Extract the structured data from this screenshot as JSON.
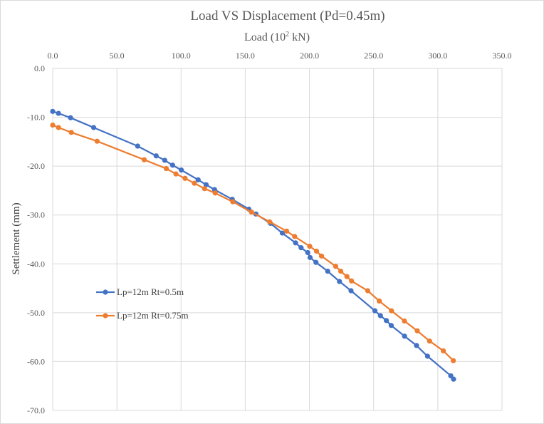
{
  "chart_data": {
    "type": "line",
    "title": "Load VS Displacement  (Pd=0.45m)",
    "xlabel_main": "Load (10",
    "xlabel_sup": "2",
    "xlabel_end": " kN)",
    "ylabel": "Settlement (mm)",
    "xlim": [
      0,
      350
    ],
    "ylim": [
      -70,
      0
    ],
    "x_ticks": [
      0,
      50,
      100,
      150,
      200,
      250,
      300,
      350
    ],
    "x_tick_labels": [
      "0.0",
      "50.0",
      "100.0",
      "150.0",
      "200.0",
      "250.0",
      "300.0",
      "350.0"
    ],
    "y_ticks": [
      0,
      -10,
      -20,
      -30,
      -40,
      -50,
      -60,
      -70
    ],
    "y_tick_labels": [
      "0.0",
      "-10.0",
      "-20.0",
      "-30.0",
      "-40.0",
      "-50.0",
      "-60.0",
      "-70.0"
    ],
    "x_axis_position": "top",
    "grid": true,
    "legend_position": "left-middle",
    "series": [
      {
        "name": "Lp=12m Rt=0.5m",
        "color": "#4472c4",
        "x": [
          0,
          4.5,
          13.9,
          31.9,
          66.2,
          80.6,
          87.3,
          93.4,
          100.2,
          113.3,
          119.5,
          126.1,
          139.9,
          152.8,
          158.3,
          169.6,
          178.9,
          189.2,
          193.5,
          198.7,
          200.5,
          205.1,
          214.2,
          223.4,
          232.4,
          251.0,
          255.3,
          259.9,
          263.7,
          274.1,
          283.4,
          292.0,
          310.1,
          312.3
        ],
        "y": [
          -8.8,
          -9.2,
          -10.1,
          -12.1,
          -15.9,
          -17.9,
          -18.8,
          -19.8,
          -20.8,
          -22.8,
          -23.8,
          -24.8,
          -26.8,
          -28.8,
          -29.8,
          -31.7,
          -33.7,
          -35.7,
          -36.7,
          -37.7,
          -38.7,
          -39.7,
          -41.5,
          -43.6,
          -45.5,
          -49.6,
          -50.6,
          -51.6,
          -52.6,
          -54.8,
          -56.7,
          -58.9,
          -62.9,
          -63.6
        ]
      },
      {
        "name": "Lp=12m Rt=0.75m",
        "color": "#ed7d31",
        "x": [
          0,
          4.5,
          14.5,
          34.6,
          71.3,
          88.5,
          96.0,
          103.1,
          110.4,
          118.3,
          126.6,
          140.3,
          154.8,
          169.0,
          182.2,
          188.5,
          200.2,
          205.5,
          209.4,
          220.4,
          224.4,
          229.2,
          232.8,
          245.4,
          254.4,
          263.9,
          274.0,
          284.0,
          293.6,
          304.3,
          312.1
        ],
        "y": [
          -11.6,
          -12.1,
          -13.1,
          -14.9,
          -18.7,
          -20.5,
          -21.6,
          -22.5,
          -23.5,
          -24.6,
          -25.5,
          -27.3,
          -29.4,
          -31.4,
          -33.3,
          -34.4,
          -36.4,
          -37.4,
          -38.4,
          -40.5,
          -41.5,
          -42.6,
          -43.5,
          -45.5,
          -47.6,
          -49.6,
          -51.7,
          -53.7,
          -55.8,
          -57.8,
          -59.8
        ]
      }
    ]
  }
}
